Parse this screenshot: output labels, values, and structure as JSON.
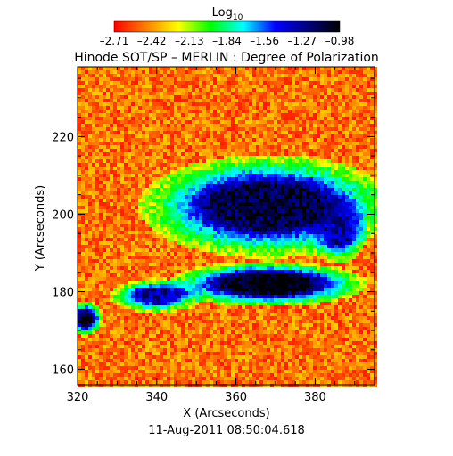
{
  "chart_data": {
    "type": "heatmap",
    "title": "Hinode SOT/SP – MERLIN : Degree of Polarization",
    "xlabel": "X (Arcseconds)",
    "ylabel": "Y (Arcseconds)",
    "xlim": [
      320,
      395
    ],
    "ylim": [
      156,
      238
    ],
    "xticks": [
      "320",
      "340",
      "360",
      "380"
    ],
    "xtick_values": [
      320,
      340,
      360,
      380
    ],
    "yticks": [
      "160",
      "180",
      "200",
      "220"
    ],
    "ytick_values": [
      160,
      180,
      200,
      220
    ],
    "colorbar": {
      "label_base": "Log",
      "label_sub": "10",
      "ticks": [
        "–2.71",
        "–2.42",
        "–2.13",
        "–1.84",
        "–1.56",
        "–1.27",
        "–0.98"
      ],
      "range": [
        -2.71,
        -0.98
      ],
      "colormap": [
        "#ff0000",
        "#ff7f00",
        "#ffff00",
        "#00ff00",
        "#00ffff",
        "#0000ff",
        "#000080",
        "#000000"
      ]
    },
    "high_polarization_regions": [
      {
        "x": 368,
        "y": 202,
        "rx": 22,
        "ry": 9,
        "level": -1.1
      },
      {
        "x": 368,
        "y": 182,
        "rx": 17,
        "ry": 4,
        "level": -1.0
      },
      {
        "x": 340,
        "y": 179,
        "rx": 8,
        "ry": 3,
        "level": -1.3
      },
      {
        "x": 322,
        "y": 173,
        "rx": 3,
        "ry": 3,
        "level": -1.05
      },
      {
        "x": 386,
        "y": 196,
        "rx": 5,
        "ry": 6,
        "level": -1.3
      }
    ],
    "footer": "11-Aug-2011 08:50:04.618"
  }
}
